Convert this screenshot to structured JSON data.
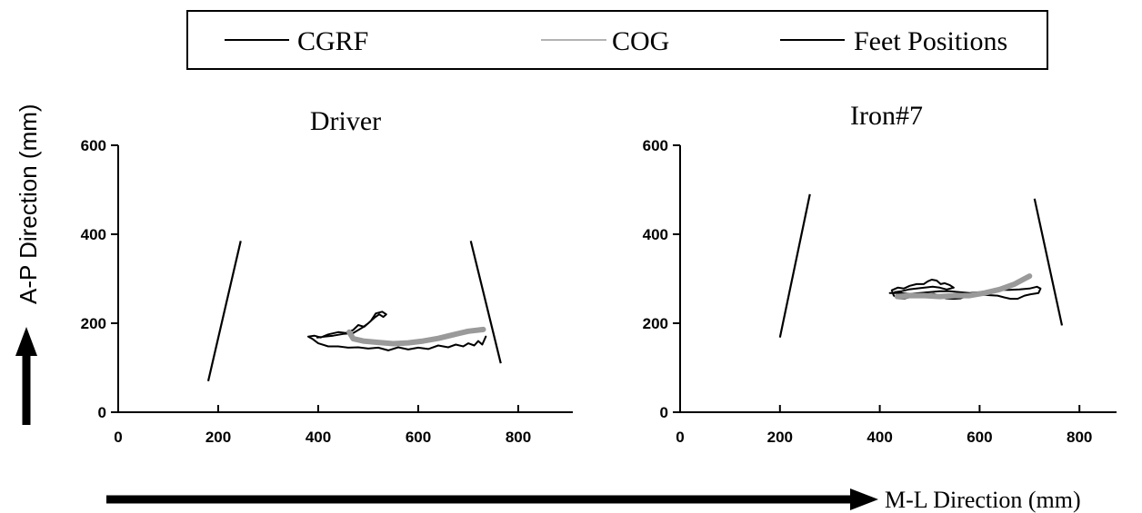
{
  "legend": {
    "items": [
      {
        "label": "CGRF",
        "color": "#000000"
      },
      {
        "label": "COG",
        "color": "#b3b3b3"
      },
      {
        "label": "Feet Positions",
        "color": "#000000"
      }
    ]
  },
  "axes": {
    "ylabel": "A-P Direction (mm)",
    "xlabel": "M-L Direction (mm)"
  },
  "chart_data": [
    {
      "type": "line",
      "title": "Driver",
      "xlim": [
        0,
        900
      ],
      "ylim": [
        0,
        600
      ],
      "xticks": [
        "0",
        "200",
        "400",
        "600",
        "800"
      ],
      "yticks": [
        "0",
        "200",
        "400",
        "600"
      ],
      "grid": false,
      "series": [
        {
          "name": "Feet Positions",
          "color": "#000000",
          "segments": [
            [
              [
                180,
                70
              ],
              [
                245,
                385
              ]
            ],
            [
              [
                705,
                385
              ],
              [
                765,
                110
              ]
            ]
          ]
        },
        {
          "name": "CGRF",
          "color": "#000000",
          "points": [
            [
              735,
              170
            ],
            [
              728,
              152
            ],
            [
              720,
              160
            ],
            [
              712,
              150
            ],
            [
              700,
              155
            ],
            [
              690,
              148
            ],
            [
              675,
              152
            ],
            [
              660,
              146
            ],
            [
              640,
              150
            ],
            [
              620,
              142
            ],
            [
              600,
              145
            ],
            [
              580,
              141
            ],
            [
              560,
              146
            ],
            [
              540,
              139
            ],
            [
              520,
              145
            ],
            [
              500,
              143
            ],
            [
              480,
              146
            ],
            [
              460,
              145
            ],
            [
              440,
              148
            ],
            [
              420,
              148
            ],
            [
              400,
              155
            ],
            [
              388,
              165
            ],
            [
              380,
              170
            ],
            [
              392,
              172
            ],
            [
              405,
              168
            ],
            [
              420,
              175
            ],
            [
              440,
              180
            ],
            [
              455,
              178
            ],
            [
              470,
              185
            ],
            [
              480,
              196
            ],
            [
              492,
              192
            ],
            [
              505,
              205
            ],
            [
              515,
              222
            ],
            [
              528,
              226
            ],
            [
              536,
              220
            ],
            [
              530,
              214
            ],
            [
              522,
              220
            ],
            [
              512,
              212
            ],
            [
              500,
              200
            ],
            [
              488,
              190
            ],
            [
              470,
              178
            ],
            [
              450,
              176
            ],
            [
              430,
              172
            ],
            [
              412,
              170
            ],
            [
              398,
              168
            ]
          ]
        },
        {
          "name": "COG",
          "color": "#b3b3b3",
          "points": [
            [
              462,
              180
            ],
            [
              470,
              165
            ],
            [
              490,
              160
            ],
            [
              520,
              157
            ],
            [
              550,
              154
            ],
            [
              580,
              156
            ],
            [
              610,
              160
            ],
            [
              640,
              166
            ],
            [
              670,
              174
            ],
            [
              700,
              182
            ],
            [
              730,
              186
            ]
          ]
        }
      ]
    },
    {
      "type": "line",
      "title": "Iron#7",
      "xlim": [
        0,
        900
      ],
      "ylim": [
        0,
        600
      ],
      "xticks": [
        "0",
        "200",
        "400",
        "600",
        "800"
      ],
      "yticks": [
        "0",
        "200",
        "400",
        "600"
      ],
      "grid": false,
      "series": [
        {
          "name": "Feet Positions",
          "color": "#000000",
          "segments": [
            [
              [
                200,
                168
              ],
              [
                260,
                490
              ]
            ],
            [
              [
                710,
                480
              ],
              [
                765,
                195
              ]
            ]
          ]
        },
        {
          "name": "CGRF",
          "color": "#000000",
          "points": [
            [
              420,
              268
            ],
            [
              440,
              268
            ],
            [
              460,
              266
            ],
            [
              480,
              268
            ],
            [
              500,
              270
            ],
            [
              520,
              272
            ],
            [
              540,
              272
            ],
            [
              560,
              270
            ],
            [
              580,
              268
            ],
            [
              600,
              270
            ],
            [
              620,
              273
            ],
            [
              640,
              275
            ],
            [
              660,
              275
            ],
            [
              680,
              276
            ],
            [
              700,
              278
            ],
            [
              715,
              282
            ],
            [
              722,
              278
            ],
            [
              718,
              268
            ],
            [
              702,
              265
            ],
            [
              690,
              262
            ],
            [
              676,
              255
            ],
            [
              662,
              255
            ],
            [
              650,
              258
            ],
            [
              636,
              262
            ],
            [
              620,
              263
            ],
            [
              606,
              264
            ],
            [
              592,
              262
            ],
            [
              578,
              262
            ],
            [
              562,
              256
            ],
            [
              548,
              255
            ],
            [
              532,
              256
            ],
            [
              520,
              262
            ],
            [
              508,
              266
            ],
            [
              494,
              264
            ],
            [
              480,
              262
            ],
            [
              465,
              260
            ],
            [
              450,
              256
            ],
            [
              438,
              256
            ],
            [
              428,
              262
            ],
            [
              424,
              274
            ],
            [
              436,
              280
            ],
            [
              448,
              278
            ],
            [
              460,
              284
            ],
            [
              474,
              288
            ],
            [
              488,
              288
            ],
            [
              496,
              294
            ],
            [
              504,
              298
            ],
            [
              514,
              296
            ],
            [
              522,
              288
            ],
            [
              530,
              290
            ],
            [
              540,
              286
            ],
            [
              548,
              280
            ],
            [
              534,
              276
            ],
            [
              520,
              280
            ],
            [
              506,
              282
            ],
            [
              490,
              280
            ],
            [
              474,
              278
            ],
            [
              458,
              276
            ],
            [
              444,
              272
            ],
            [
              430,
              270
            ]
          ]
        },
        {
          "name": "COG",
          "color": "#b3b3b3",
          "points": [
            [
              435,
              260
            ],
            [
              460,
              262
            ],
            [
              490,
              262
            ],
            [
              520,
              260
            ],
            [
              550,
              262
            ],
            [
              580,
              262
            ],
            [
              610,
              268
            ],
            [
              640,
              276
            ],
            [
              670,
              288
            ],
            [
              690,
              300
            ],
            [
              700,
              306
            ]
          ]
        }
      ]
    }
  ]
}
